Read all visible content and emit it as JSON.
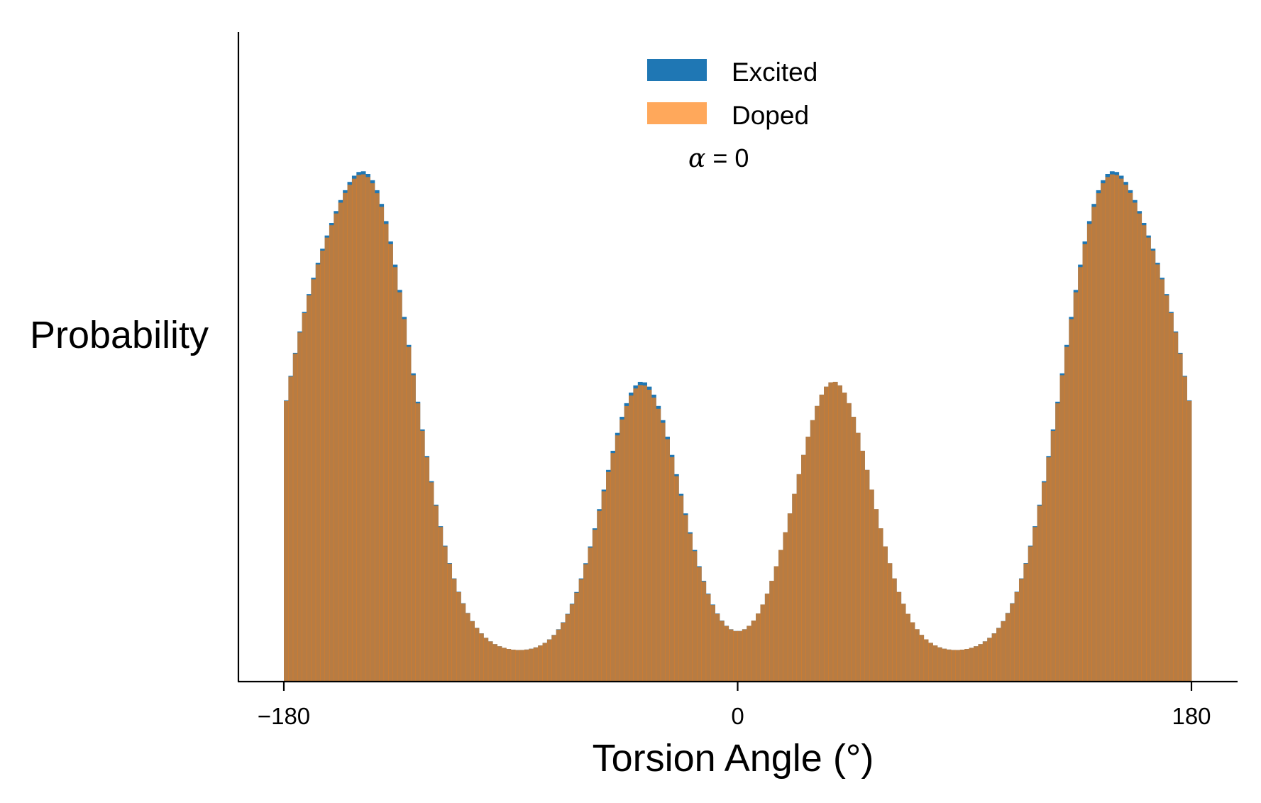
{
  "chart_data": {
    "type": "bar",
    "subtype": "histogram",
    "xlabel": "Torsion Angle (°)",
    "ylabel": "Probability",
    "xlim": [
      -180,
      180
    ],
    "x_ticks": [
      {
        "value": -180,
        "label": "−180"
      },
      {
        "value": 0,
        "label": "0"
      },
      {
        "value": 180,
        "label": "180"
      }
    ],
    "y_ticks_shown": false,
    "grid": false,
    "legend": {
      "position": "top-center"
    },
    "annotation": {
      "symbol": "α",
      "text": " = 0"
    },
    "bin_width_deg": 1.8,
    "series": [
      {
        "name": "Excited",
        "color": "#1f77b4",
        "opacity": 1.0,
        "peaks": [
          {
            "center": -175,
            "width": 12,
            "height": 0.27
          },
          {
            "center": -147,
            "width": 18,
            "height": 0.76
          },
          {
            "center": -38,
            "width": 15,
            "height": 0.44
          },
          {
            "center": 38,
            "width": 15,
            "height": 0.44
          },
          {
            "center": 147,
            "width": 18,
            "height": 0.76
          },
          {
            "center": 175,
            "width": 12,
            "height": 0.27
          }
        ],
        "baseline": 0.045
      },
      {
        "name": "Doped",
        "color": "#ff7f0e",
        "opacity": 0.68,
        "peaks": [
          {
            "center": -175,
            "width": 12,
            "height": 0.27
          },
          {
            "center": -147,
            "width": 18,
            "height": 0.755
          },
          {
            "center": -38,
            "width": 15,
            "height": 0.435
          },
          {
            "center": 38,
            "width": 15,
            "height": 0.44
          },
          {
            "center": 147,
            "width": 18,
            "height": 0.755
          },
          {
            "center": 175,
            "width": 12,
            "height": 0.27
          }
        ],
        "baseline": 0.045
      }
    ]
  }
}
